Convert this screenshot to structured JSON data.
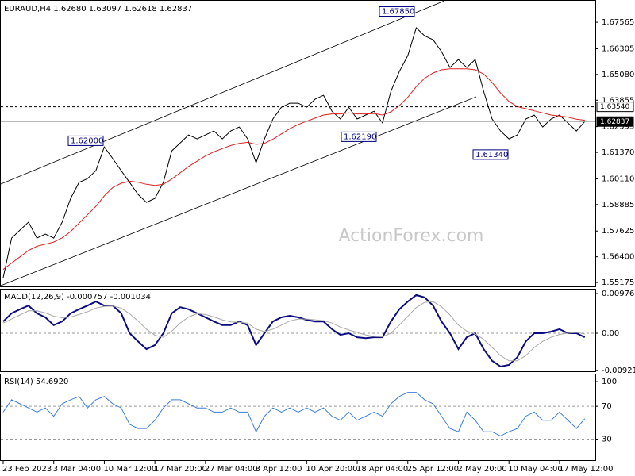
{
  "chart_data": [
    {
      "type": "line",
      "title": "EURAUD,H4 1.62680 1.63097 1.62618 1.62837",
      "watermark": "ActionForex.com",
      "categories": [
        "23 Feb 2023",
        null,
        null,
        null,
        null,
        null,
        "3 Mar 04:00",
        null,
        null,
        null,
        null,
        null,
        "10 Mar 12:00",
        null,
        null,
        null,
        null,
        null,
        "17 Mar 20:00",
        null,
        null,
        null,
        null,
        null,
        "27 Mar 04:00",
        null,
        null,
        null,
        null,
        null,
        "3 Apr 12:00",
        null,
        null,
        null,
        null,
        null,
        "10 Apr 20:00",
        null,
        null,
        null,
        null,
        null,
        "18 Apr 04:00",
        null,
        null,
        null,
        null,
        null,
        "25 Apr 12:00",
        null,
        null,
        null,
        null,
        null,
        "2 May 20:00",
        null,
        null,
        null,
        null,
        null,
        "10 May 04:00",
        null,
        null,
        null,
        null,
        null,
        "17 May 12:00",
        null,
        null,
        null
      ],
      "series": [
        {
          "color": "#000000",
          "values": [
            1.554,
            1.5729,
            1.5767,
            1.5805,
            1.5729,
            1.5748,
            1.5729,
            1.5805,
            1.5918,
            1.5994,
            1.6012,
            1.605,
            1.6163,
            1.6107,
            1.605,
            1.5994,
            1.5937,
            1.5899,
            1.5918,
            1.5994,
            1.6144,
            1.6182,
            1.622,
            1.6201,
            1.622,
            1.6239,
            1.6201,
            1.6239,
            1.6258,
            1.6201,
            1.6088,
            1.6201,
            1.6296,
            1.6352,
            1.6371,
            1.6371,
            1.6352,
            1.639,
            1.6409,
            1.6333,
            1.6296,
            1.6352,
            1.6296,
            1.6315,
            1.6333,
            1.6277,
            1.6428,
            1.6522,
            1.6598,
            1.673,
            1.6692,
            1.6673,
            1.6617,
            1.6541,
            1.6579,
            1.6541,
            1.6579,
            1.6428,
            1.6296,
            1.6239,
            1.6201,
            1.622,
            1.6296,
            1.6315,
            1.6258,
            1.6296,
            1.6315,
            1.6277,
            1.6239,
            1.6284
          ]
        },
        {
          "color": "#e02020",
          "values": [
            1.558,
            1.561,
            1.564,
            1.567,
            1.569,
            1.57,
            1.571,
            1.573,
            1.576,
            1.58,
            1.584,
            1.588,
            1.593,
            1.597,
            1.599,
            1.6,
            1.5995,
            1.5985,
            1.598,
            1.5985,
            1.601,
            1.604,
            1.607,
            1.6095,
            1.612,
            1.614,
            1.6155,
            1.617,
            1.618,
            1.6185,
            1.6175,
            1.618,
            1.62,
            1.6225,
            1.625,
            1.627,
            1.6285,
            1.63,
            1.6315,
            1.632,
            1.632,
            1.6325,
            1.632,
            1.632,
            1.6322,
            1.6315,
            1.633,
            1.636,
            1.64,
            1.645,
            1.649,
            1.6515,
            1.653,
            1.6535,
            1.6535,
            1.6535,
            1.653,
            1.651,
            1.647,
            1.642,
            1.638,
            1.6355,
            1.6345,
            1.6335,
            1.6325,
            1.6315,
            1.631,
            1.6305,
            1.6295,
            1.629
          ]
        }
      ],
      "ylim": [
        1.5499,
        1.6855
      ],
      "yticks": [
        1.55175,
        {
          "value": 1.564,
          "label": "1.56400"
        },
        1.57625,
        1.58885,
        {
          "value": 1.6011,
          "label": "1.60110"
        },
        {
          "value": 1.6137,
          "label": "1.61370"
        },
        1.62595,
        1.63855,
        {
          "value": 1.6508,
          "label": "1.65080"
        },
        1.66305,
        1.67565
      ],
      "hlines": [
        {
          "value": 1.6354,
          "label": "1.63540",
          "dashed": true
        },
        {
          "value": 1.62837,
          "label": "1.62837",
          "dashed": false
        }
      ],
      "annotations": [
        {
          "value": 1.6785,
          "label": "1.67850"
        },
        {
          "value": 1.62,
          "label": "1.62000"
        },
        {
          "value": 1.6219,
          "label": "1.62190"
        },
        {
          "value": 1.6134,
          "label": "1.61340"
        }
      ]
    },
    {
      "type": "line",
      "title": "MACD(12,26,9) -0.000757 -0.001034",
      "series": [
        {
          "color": "#0c0c82",
          "values": [
            0.0029,
            0.0049,
            0.0059,
            0.0068,
            0.0049,
            0.0039,
            0.002,
            0.0029,
            0.0049,
            0.0059,
            0.0068,
            0.0078,
            0.0068,
            0.0068,
            0.0049,
            0,
            -0.002,
            -0.0039,
            -0.0029,
            0,
            0.0049,
            0.0064,
            0.0059,
            0.0049,
            0.0039,
            0.0029,
            0.002,
            0.002,
            0.0029,
            0.002,
            -0.0029,
            0,
            0.0029,
            0.0039,
            0.0043,
            0.0039,
            0.0033,
            0.0029,
            0.0029,
            0.001,
            -0.0004,
            0,
            -0.001,
            -0.0012,
            -0.001,
            -0.001,
            0.0029,
            0.0059,
            0.0078,
            0.0094,
            0.0088,
            0.0068,
            0.0029,
            0,
            -0.0039,
            -0.001,
            0,
            -0.0039,
            -0.0068,
            -0.0082,
            -0.0078,
            -0.0059,
            -0.002,
            0,
            0,
            0.0004,
            0.001,
            0,
            0,
            -0.001
          ]
        },
        {
          "color": "#a8a8a8",
          "values": [
            0.0025,
            0.0035,
            0.0045,
            0.0055,
            0.0055,
            0.005,
            0.0042,
            0.0038,
            0.004,
            0.0046,
            0.0053,
            0.0062,
            0.0066,
            0.0067,
            0.0062,
            0.0048,
            0.003,
            0.001,
            -0.0005,
            -0.001,
            0.0005,
            0.0025,
            0.004,
            0.0048,
            0.0046,
            0.004,
            0.0033,
            0.0028,
            0.0027,
            0.0025,
            0.001,
            0.0004,
            0.001,
            0.002,
            0.003,
            0.0035,
            0.0035,
            0.0033,
            0.0031,
            0.0025,
            0.0015,
            0.0008,
            0.0002,
            -0.0004,
            -0.0008,
            -0.0009,
            0,
            0.002,
            0.0042,
            0.0063,
            0.0076,
            0.0078,
            0.0065,
            0.0045,
            0.002,
            0.0005,
            -0.0002,
            -0.0015,
            -0.0035,
            -0.0055,
            -0.0068,
            -0.0068,
            -0.0055,
            -0.0035,
            -0.002,
            -0.001,
            -0.0003,
            0,
            0.0002,
            -0.0002
          ]
        }
      ],
      "ylim": [
        -0.00937,
        0.01074
      ],
      "yticks": [
        -0.009216,
        {
          "value": 0,
          "label": "0.00"
        },
        0.009761
      ],
      "levels": [
        0
      ]
    },
    {
      "type": "line",
      "title": "RSI(14) 54.6920",
      "series": [
        {
          "color": "#3c7ddc",
          "values": [
            63,
            78,
            73,
            68,
            63,
            68,
            58,
            73,
            78,
            82,
            68,
            78,
            82,
            73,
            68,
            48,
            43,
            43,
            53,
            68,
            78,
            78,
            73,
            68,
            68,
            63,
            63,
            68,
            63,
            63,
            39,
            58,
            68,
            63,
            68,
            63,
            68,
            63,
            68,
            58,
            53,
            63,
            53,
            58,
            63,
            58,
            73,
            82,
            87,
            87,
            78,
            73,
            58,
            43,
            39,
            63,
            53,
            39,
            39,
            34,
            39,
            43,
            58,
            63,
            53,
            53,
            63,
            53,
            43,
            55
          ]
        }
      ],
      "ylim": [
        4.4,
        108.8
      ],
      "yticks": [
        30,
        70,
        100
      ],
      "levels": [
        30,
        70
      ]
    }
  ]
}
